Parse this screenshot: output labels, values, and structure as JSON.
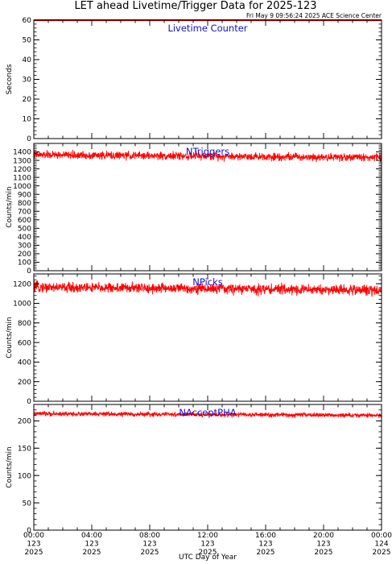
{
  "figure": {
    "title": "LET ahead Livetime/Trigger Data for 2025-123",
    "subtitle": "Fri May  9 09:56:24 2025 ACE Science Center",
    "xlabel": "UTC Day of Year"
  },
  "colors": {
    "data": "#ff0000",
    "label": "#1010d0",
    "axis": "#000000"
  },
  "chart_data": [
    {
      "type": "line",
      "label": "Livetime Counter",
      "ylabel": "Seconds",
      "ylim": [
        0,
        60
      ],
      "yticks": [
        0,
        10,
        20,
        30,
        40,
        50,
        60
      ],
      "xlim": [
        0,
        24
      ],
      "xticks": [
        {
          "hour": 0,
          "lines": [
            "00:00",
            "123",
            "2025"
          ]
        },
        {
          "hour": 4,
          "lines": [
            "04:00",
            "123",
            "2025"
          ]
        },
        {
          "hour": 8,
          "lines": [
            "08:00",
            "123",
            "2025"
          ]
        },
        {
          "hour": 12,
          "lines": [
            "12:00",
            "123",
            "2025"
          ]
        },
        {
          "hour": 16,
          "lines": [
            "16:00",
            "123",
            "2025"
          ]
        },
        {
          "hour": 20,
          "lines": [
            "20:00",
            "123",
            "2025"
          ]
        },
        {
          "hour": 24,
          "lines": [
            "00:00",
            "124",
            "2025"
          ]
        }
      ],
      "series": [
        {
          "x_range_hours": [
            0,
            24
          ],
          "mean": 60,
          "noise": 0
        }
      ]
    },
    {
      "type": "line",
      "label": "NTriggers",
      "ylabel": "Counts/min",
      "ylim": [
        0,
        1500
      ],
      "yticks": [
        0,
        100,
        200,
        300,
        400,
        500,
        600,
        700,
        800,
        900,
        1000,
        1100,
        1200,
        1300,
        1400
      ],
      "xlim": [
        0,
        24
      ],
      "series": [
        {
          "x_range_hours": [
            0,
            24
          ],
          "mean": 1365,
          "noise": 40,
          "end_mean": 1335
        }
      ]
    },
    {
      "type": "line",
      "label": "NPicks",
      "ylabel": "Counts/min",
      "ylim": [
        0,
        1300
      ],
      "yticks": [
        0,
        200,
        400,
        600,
        800,
        1000,
        1200
      ],
      "xlim": [
        0,
        24
      ],
      "series": [
        {
          "x_range_hours": [
            0,
            24
          ],
          "mean": 1165,
          "noise": 45,
          "end_mean": 1135
        }
      ]
    },
    {
      "type": "line",
      "label": "NAcceptPHA",
      "ylabel": "Counts/min",
      "ylim": [
        0,
        230
      ],
      "yticks": [
        0,
        50,
        100,
        150,
        200
      ],
      "xlim": [
        0,
        24
      ],
      "series": [
        {
          "x_range_hours": [
            0,
            24
          ],
          "mean": 213,
          "noise": 3.5,
          "end_mean": 210
        }
      ]
    }
  ]
}
